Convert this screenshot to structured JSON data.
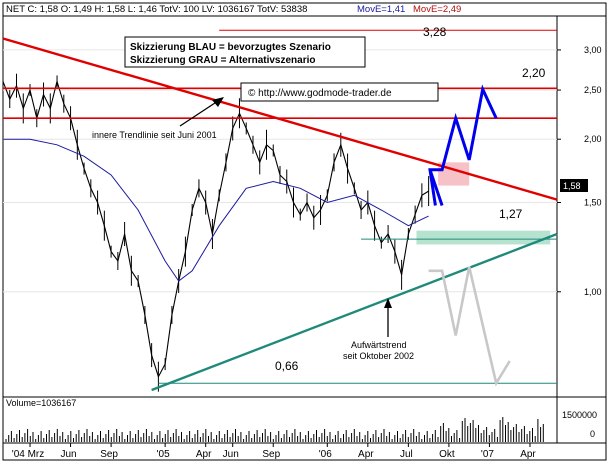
{
  "header": {
    "ohlc": "NET C: 1,58 O: 1,49 H: 1,58 L: 1,46 TotV: 100 LV: 1036167 TotV: 53838",
    "ma1": "MovE=1,41",
    "ma2": "MovE=2,49"
  },
  "legend": {
    "line1": "Skizzierung BLAU = bevorzugtes Szenario",
    "line2": "Skizzierung GRAU = Alternativszenario"
  },
  "copyright": "© http://www.godmode-trader.de",
  "annotations": {
    "inner_trendline": "innere Trendlinie seit Juni 2001",
    "uptrend_line1": "Aufwärtstrend",
    "uptrend_line2": "seit Oktober 2002",
    "level_328": "3,28",
    "level_220": "2,20",
    "level_127": "1,27",
    "level_066": "0,66"
  },
  "last_price_label": "1,58",
  "volume_label": "Volume=1036167",
  "colors": {
    "red": "#e00000",
    "teal": "#1f8a7a",
    "blue": "#0000ee",
    "gray": "#c8c8c8",
    "price": "#000000",
    "ma1": "#1a1aa0",
    "ma2": "#b01010"
  },
  "chart_data": {
    "type": "line",
    "title": "",
    "xlabel": "",
    "ylabel": "",
    "y_scale": "log",
    "ylim": [
      0.62,
      3.5
    ],
    "y_ticks": [
      {
        "value": 3.0,
        "label": "3,00"
      },
      {
        "value": 2.5,
        "label": "2,50"
      },
      {
        "value": 2.0,
        "label": "2,00"
      },
      {
        "value": 1.5,
        "label": "1,50"
      },
      {
        "value": 1.0,
        "label": "1,00"
      }
    ],
    "x_ticks": [
      "'04 Mrz",
      "Jun",
      "Sep",
      "'05",
      "Apr",
      "Jun",
      "Sep",
      "'06",
      "Apr",
      "Jul",
      "Okt",
      "'07",
      "Apr"
    ],
    "x_tick_months": [
      2,
      5,
      8,
      12,
      15,
      17,
      20,
      24,
      27,
      30,
      33,
      36,
      39
    ],
    "xlim_months": [
      0,
      41
    ],
    "series": [
      {
        "kind": "price",
        "points": [
          [
            0,
            2.6
          ],
          [
            0.5,
            2.4
          ],
          [
            1,
            2.55
          ],
          [
            1.5,
            2.3
          ],
          [
            2,
            2.5
          ],
          [
            2.5,
            2.2
          ],
          [
            3,
            2.45
          ],
          [
            3.5,
            2.3
          ],
          [
            4,
            2.6
          ],
          [
            4.5,
            2.35
          ],
          [
            5,
            2.2
          ],
          [
            5.5,
            1.95
          ],
          [
            6,
            1.75
          ],
          [
            6.5,
            1.6
          ],
          [
            7,
            1.5
          ],
          [
            7.5,
            1.35
          ],
          [
            8,
            1.2
          ],
          [
            8.5,
            1.15
          ],
          [
            9,
            1.3
          ],
          [
            9.5,
            1.1
          ],
          [
            10,
            1.05
          ],
          [
            10.5,
            0.9
          ],
          [
            11,
            0.75
          ],
          [
            11.5,
            0.68
          ],
          [
            12,
            0.72
          ],
          [
            12.5,
            0.9
          ],
          [
            13,
            1.05
          ],
          [
            13.5,
            1.2
          ],
          [
            14,
            1.45
          ],
          [
            14.5,
            1.6
          ],
          [
            15,
            1.5
          ],
          [
            15.5,
            1.3
          ],
          [
            16,
            1.55
          ],
          [
            16.5,
            1.8
          ],
          [
            17,
            2.1
          ],
          [
            17.5,
            2.25
          ],
          [
            18,
            2.1
          ],
          [
            18.5,
            1.95
          ],
          [
            19,
            1.8
          ],
          [
            19.5,
            1.95
          ],
          [
            20,
            1.9
          ],
          [
            20.5,
            1.7
          ],
          [
            21,
            1.65
          ],
          [
            21.5,
            1.5
          ],
          [
            22,
            1.42
          ],
          [
            22.5,
            1.5
          ],
          [
            23,
            1.4
          ],
          [
            23.5,
            1.45
          ],
          [
            24,
            1.55
          ],
          [
            24.5,
            1.8
          ],
          [
            25,
            1.95
          ],
          [
            25.5,
            1.75
          ],
          [
            26,
            1.6
          ],
          [
            26.5,
            1.45
          ],
          [
            27,
            1.5
          ],
          [
            27.5,
            1.35
          ],
          [
            28,
            1.25
          ],
          [
            28.5,
            1.3
          ],
          [
            29,
            1.2
          ],
          [
            29.5,
            1.08
          ],
          [
            30,
            1.3
          ],
          [
            30.5,
            1.42
          ],
          [
            31,
            1.55
          ],
          [
            31.5,
            1.58
          ]
        ]
      },
      {
        "kind": "ma",
        "name": "MovE=1,41",
        "points": [
          [
            0,
            2.0
          ],
          [
            2,
            2.0
          ],
          [
            4,
            1.95
          ],
          [
            6,
            1.85
          ],
          [
            8,
            1.7
          ],
          [
            10,
            1.45
          ],
          [
            12,
            1.15
          ],
          [
            13,
            1.05
          ],
          [
            14,
            1.1
          ],
          [
            16,
            1.35
          ],
          [
            18,
            1.6
          ],
          [
            20,
            1.65
          ],
          [
            22,
            1.6
          ],
          [
            24,
            1.5
          ],
          [
            26,
            1.55
          ],
          [
            28,
            1.45
          ],
          [
            30,
            1.35
          ],
          [
            31.5,
            1.41
          ]
        ]
      },
      {
        "kind": "scenario",
        "name": "BLAU",
        "points": [
          [
            32,
            1.48
          ],
          [
            31.6,
            1.74
          ],
          [
            32.5,
            1.74
          ],
          [
            33.5,
            2.2
          ],
          [
            34.5,
            1.82
          ],
          [
            35.5,
            2.51
          ],
          [
            36.5,
            2.2
          ]
        ]
      },
      {
        "kind": "scenario_arrow",
        "name": "BLAU",
        "points": [
          [
            31.6,
            1.74
          ],
          [
            32.5,
            1.48
          ]
        ]
      },
      {
        "kind": "scenario",
        "name": "GRAU",
        "points": [
          [
            31.5,
            1.1
          ],
          [
            32.5,
            1.1
          ],
          [
            33.5,
            0.82
          ],
          [
            34.5,
            1.12
          ],
          [
            36.5,
            0.66
          ],
          [
            37.5,
            0.73
          ]
        ]
      }
    ],
    "lines": [
      {
        "kind": "trend",
        "color": "red",
        "points": [
          [
            0,
            3.16
          ],
          [
            41,
            1.52
          ]
        ]
      },
      {
        "kind": "trend",
        "color": "teal",
        "points": [
          [
            11,
            0.64
          ],
          [
            41,
            1.3
          ]
        ]
      },
      {
        "kind": "hline",
        "color": "red",
        "value": 3.28
      },
      {
        "kind": "hline",
        "color": "red",
        "value": 2.52
      },
      {
        "kind": "hline",
        "color": "red",
        "value": 2.2
      },
      {
        "kind": "hline",
        "color": "teal",
        "value": 1.27
      },
      {
        "kind": "hline",
        "color": "teal",
        "value": 0.66
      }
    ],
    "zones": [
      {
        "color": "pink",
        "x": [
          32.2,
          34.5
        ],
        "y": [
          1.62,
          1.8
        ]
      },
      {
        "color": "lightgreen",
        "x": [
          30.6,
          40.5
        ],
        "y": [
          1.24,
          1.32
        ]
      }
    ]
  }
}
